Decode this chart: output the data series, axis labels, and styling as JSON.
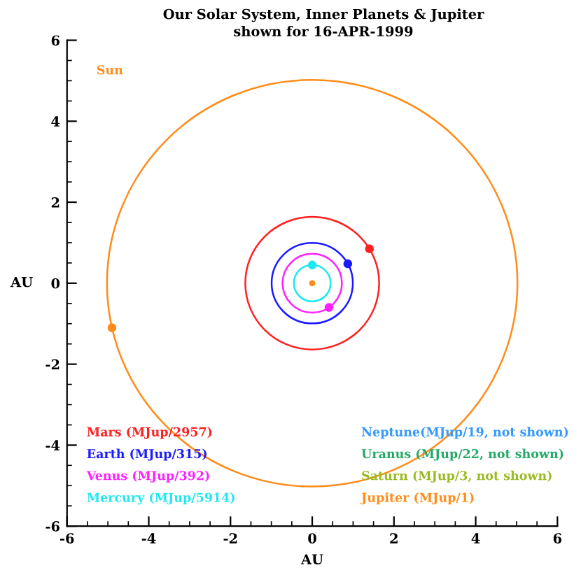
{
  "chart_data": {
    "type": "scatter",
    "title": "Our Solar System, Inner Planets & Jupiter",
    "subtitle": "shown for 16-APR-1999",
    "xlabel": "AU",
    "ylabel": "AU",
    "xlim": [
      -6,
      6
    ],
    "ylim": [
      -6,
      6
    ],
    "xticks": [
      -6,
      -4,
      -2,
      0,
      2,
      4,
      6
    ],
    "yticks": [
      -6,
      -4,
      -2,
      0,
      2,
      4,
      6
    ],
    "grid": false,
    "annotations": [
      "Sun"
    ],
    "series": [
      {
        "color": "#ff8c1a",
        "x": [
          0
        ],
        "values": [
          0
        ]
      },
      {
        "name": "Mars (MJup/2957)",
        "color": "#ff2020",
        "x": [
          1.4
        ],
        "values": [
          0.85
        ]
      },
      {
        "name": "Earth (MJup/315)",
        "color": "#1a1aff",
        "x": [
          0.87
        ],
        "values": [
          0.48
        ]
      },
      {
        "name": "Venus (MJup/392)",
        "color": "#ff20ff",
        "x": [
          0.41
        ],
        "values": [
          -0.6
        ]
      },
      {
        "name": "Mercury (MJup/5914)",
        "color": "#20e8f0",
        "x": [
          0.0
        ],
        "values": [
          0.45
        ]
      },
      {
        "name": "Neptune(MJup/19, not shown)",
        "color": "#3399ff"
      },
      {
        "name": "Uranus (MJup/22, not shown)",
        "color": "#22aa66"
      },
      {
        "name": "Saturn (MJup/3, not shown)",
        "color": "#99bb22"
      },
      {
        "name": "Jupiter (MJup/1)",
        "color": "#ff8c1a",
        "x": [
          -4.9
        ],
        "values": [
          -1.1
        ]
      }
    ]
  }
}
